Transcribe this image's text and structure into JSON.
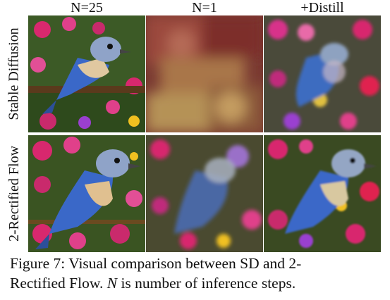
{
  "columns": [
    "N=25",
    "N=1",
    "+Distill"
  ],
  "rows": [
    "Stable Diffusion",
    "2-Rectified Flow"
  ],
  "caption": {
    "line1": "Figure 7: Visual comparison between SD and 2-",
    "line2_a": "Rectified Flow. ",
    "line2_var": "N",
    "line2_b": " is number of inference steps."
  }
}
